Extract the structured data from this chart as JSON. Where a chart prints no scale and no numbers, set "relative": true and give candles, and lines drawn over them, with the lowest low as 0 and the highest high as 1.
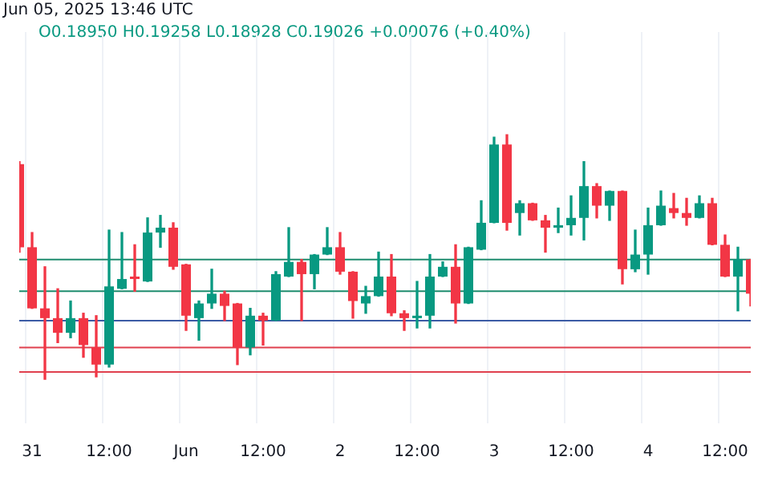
{
  "chart_data": {
    "type": "candlestick",
    "title": "Jun 05, 2025 13:46 UTC",
    "subtitle": "O0.18950 H0.19258 L0.18928 C0.19026 +0.00076 (+0.40%)",
    "relative": true,
    "legend": false,
    "grid": "x",
    "categories": [
      null,
      "31",
      null,
      null,
      null,
      null,
      null,
      "12:00",
      null,
      null,
      null,
      null,
      null,
      "Jun",
      null,
      null,
      null,
      null,
      null,
      "12:00",
      null,
      null,
      null,
      null,
      null,
      "2",
      null,
      null,
      null,
      null,
      null,
      "12:00",
      null,
      null,
      null,
      null,
      null,
      "3",
      null,
      null,
      null,
      null,
      null,
      "12:00",
      null,
      null,
      null,
      null,
      null,
      "4",
      null,
      null,
      null,
      null,
      null,
      "12:00",
      null,
      null
    ],
    "ohlc": [
      [
        0.88,
        0.89,
        0.52,
        0.54
      ],
      [
        0.54,
        0.6,
        0.29,
        0.29
      ],
      [
        0.29,
        0.46,
        0,
        0.25
      ],
      [
        0.25,
        0.37,
        0.15,
        0.19
      ],
      [
        0.19,
        0.32,
        0.17,
        0.25
      ],
      [
        0.25,
        0.27,
        0.09,
        0.14
      ],
      [
        0.13,
        0.26,
        0.01,
        0.06
      ],
      [
        0.06,
        0.61,
        0.05,
        0.38
      ],
      [
        0.37,
        0.6,
        0.37,
        0.41
      ],
      [
        0.42,
        0.55,
        0.36,
        0.41
      ],
      [
        0.4,
        0.66,
        0.4,
        0.6
      ],
      [
        0.6,
        0.67,
        0.54,
        0.62
      ],
      [
        0.62,
        0.64,
        0.45,
        0.46
      ],
      [
        0.47,
        0.47,
        0.2,
        0.26
      ],
      [
        0.25,
        0.32,
        0.16,
        0.31
      ],
      [
        0.31,
        0.45,
        0.29,
        0.35
      ],
      [
        0.35,
        0.36,
        0.24,
        0.3
      ],
      [
        0.31,
        0.31,
        0.06,
        0.13
      ],
      [
        0.13,
        0.29,
        0.1,
        0.26
      ],
      [
        0.26,
        0.27,
        0.14,
        0.24
      ],
      [
        0.24,
        0.44,
        0.24,
        0.43
      ],
      [
        0.42,
        0.62,
        0.42,
        0.48
      ],
      [
        0.48,
        0.49,
        0.24,
        0.43
      ],
      [
        0.43,
        0.51,
        0.37,
        0.51
      ],
      [
        0.51,
        0.62,
        0.51,
        0.54
      ],
      [
        0.54,
        0.6,
        0.43,
        0.44
      ],
      [
        0.44,
        0.44,
        0.25,
        0.32
      ],
      [
        0.31,
        0.38,
        0.27,
        0.34
      ],
      [
        0.34,
        0.52,
        0.34,
        0.42
      ],
      [
        0.42,
        0.51,
        0.26,
        0.27
      ],
      [
        0.27,
        0.28,
        0.2,
        0.25
      ],
      [
        0.25,
        0.4,
        0.21,
        0.26
      ],
      [
        0.26,
        0.51,
        0.21,
        0.42
      ],
      [
        0.42,
        0.48,
        0.42,
        0.46
      ],
      [
        0.46,
        0.55,
        0.23,
        0.31
      ],
      [
        0.31,
        0.54,
        0.31,
        0.54
      ],
      [
        0.53,
        0.73,
        0.53,
        0.64
      ],
      [
        0.64,
        0.99,
        0.64,
        0.96
      ],
      [
        0.96,
        1,
        0.61,
        0.64
      ],
      [
        0.68,
        0.73,
        0.59,
        0.72
      ],
      [
        0.72,
        0.72,
        0.65,
        0.65
      ],
      [
        0.65,
        0.67,
        0.52,
        0.62
      ],
      [
        0.62,
        0.7,
        0.6,
        0.63
      ],
      [
        0.63,
        0.75,
        0.59,
        0.66
      ],
      [
        0.66,
        0.89,
        0.57,
        0.79
      ],
      [
        0.79,
        0.8,
        0.66,
        0.71
      ],
      [
        0.71,
        0.77,
        0.65,
        0.77
      ],
      [
        0.77,
        0.77,
        0.39,
        0.45
      ],
      [
        0.45,
        0.61,
        0.44,
        0.51
      ],
      [
        0.51,
        0.7,
        0.43,
        0.63
      ],
      [
        0.63,
        0.77,
        0.63,
        0.71
      ],
      [
        0.7,
        0.76,
        0.66,
        0.68
      ],
      [
        0.68,
        0.74,
        0.63,
        0.66
      ],
      [
        0.66,
        0.75,
        0.66,
        0.72
      ],
      [
        0.72,
        0.74,
        0.55,
        0.55
      ],
      [
        0.55,
        0.59,
        0.42,
        0.42
      ],
      [
        0.42,
        0.54,
        0.28,
        0.49
      ],
      [
        0.49,
        0.49,
        0.3,
        0.35
      ]
    ],
    "ref_lines": [
      {
        "axis": "y",
        "value": 0.49,
        "color": "#1e8c6e"
      },
      {
        "axis": "y",
        "value": 0.36,
        "color": "#1e8c6e"
      },
      {
        "axis": "y",
        "value": 0.24,
        "color": "#3b5ba5"
      },
      {
        "axis": "y",
        "value": 0.13,
        "color": "#e0404e"
      },
      {
        "axis": "y",
        "value": 0.03,
        "color": "#e0404e"
      }
    ]
  }
}
